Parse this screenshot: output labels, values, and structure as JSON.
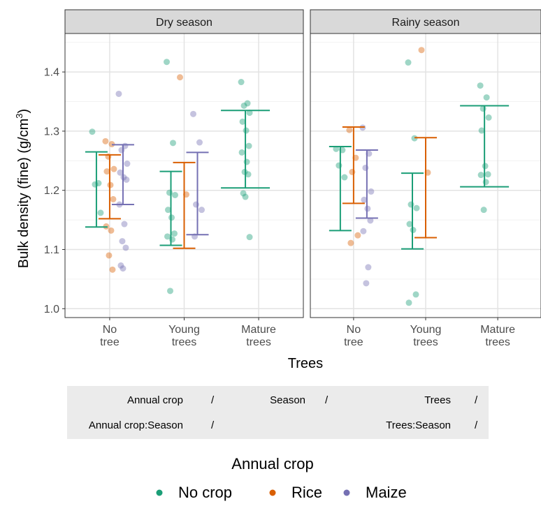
{
  "chart_data": {
    "type": "scatter",
    "ylabel_main": "Bulk density (fine) (g/cm",
    "ylabel_sup": "3",
    "ylabel_tail": ")",
    "xlabel": "Trees",
    "ylim": [
      0.985,
      1.465
    ],
    "yticks": [
      "1.0",
      "1.1",
      "1.2",
      "1.3",
      "1.4"
    ],
    "categories": [
      [
        "No",
        "tree"
      ],
      [
        "Young",
        "trees"
      ],
      [
        "Mature",
        "trees"
      ]
    ],
    "colors": {
      "No crop": "#1b9e77",
      "Rice": "#d95f02",
      "Maize": "#7570b3"
    },
    "legend": {
      "title": "Annual crop",
      "entries": [
        "No crop",
        "Rice",
        "Maize"
      ],
      "position": "bottom"
    },
    "panels": [
      {
        "title": "Dry season",
        "groups": [
          {
            "tree": 0,
            "crop": "No crop",
            "lower": 1.138,
            "upper": 1.265,
            "points": [
              1.299,
              1.212,
              1.21,
              1.162
            ]
          },
          {
            "tree": 0,
            "crop": "Rice",
            "lower": 1.152,
            "upper": 1.26,
            "points": [
              1.283,
              1.278,
              1.257,
              1.236,
              1.232,
              1.209,
              1.185,
              1.139,
              1.132,
              1.09,
              1.066
            ]
          },
          {
            "tree": 0,
            "crop": "Maize",
            "lower": 1.176,
            "upper": 1.277,
            "points": [
              1.363,
              1.275,
              1.268,
              1.245,
              1.23,
              1.222,
              1.218,
              1.176,
              1.143,
              1.114,
              1.103,
              1.073,
              1.068
            ]
          },
          {
            "tree": 1,
            "crop": "No crop",
            "lower": 1.107,
            "upper": 1.232,
            "points": [
              1.417,
              1.28,
              1.196,
              1.192,
              1.167,
              1.154,
              1.127,
              1.122,
              1.117,
              1.03
            ]
          },
          {
            "tree": 1,
            "crop": "Rice",
            "lower": 1.102,
            "upper": 1.247,
            "points": [
              1.391,
              1.193
            ]
          },
          {
            "tree": 1,
            "crop": "Maize",
            "lower": 1.125,
            "upper": 1.264,
            "points": [
              1.329,
              1.281,
              1.176,
              1.167,
              1.122
            ]
          },
          {
            "tree": 2,
            "crop": "No crop",
            "lower": 1.204,
            "upper": 1.335,
            "points": [
              1.383,
              1.347,
              1.343,
              1.331,
              1.316,
              1.301,
              1.275,
              1.264,
              1.248,
              1.231,
              1.227,
              1.195,
              1.189,
              1.121
            ]
          }
        ]
      },
      {
        "title": "Rainy season",
        "groups": [
          {
            "tree": 0,
            "crop": "No crop",
            "lower": 1.132,
            "upper": 1.274,
            "points": [
              1.27,
              1.268,
              1.242,
              1.222
            ]
          },
          {
            "tree": 0,
            "crop": "Rice",
            "lower": 1.178,
            "upper": 1.307,
            "points": [
              1.302,
              1.255,
              1.231,
              1.124,
              1.111
            ]
          },
          {
            "tree": 0,
            "crop": "Maize",
            "lower": 1.153,
            "upper": 1.268,
            "points": [
              1.306,
              1.262,
              1.238,
              1.198,
              1.184,
              1.169,
              1.149,
              1.131,
              1.07,
              1.043
            ]
          },
          {
            "tree": 1,
            "crop": "No crop",
            "lower": 1.101,
            "upper": 1.229,
            "points": [
              1.416,
              1.288,
              1.176,
              1.17,
              1.143,
              1.133,
              1.024,
              1.01
            ]
          },
          {
            "tree": 1,
            "crop": "Rice",
            "lower": 1.12,
            "upper": 1.289,
            "points": [
              1.437,
              1.23
            ]
          },
          {
            "tree": 2,
            "crop": "No crop",
            "lower": 1.206,
            "upper": 1.343,
            "points": [
              1.377,
              1.357,
              1.338,
              1.323,
              1.301,
              1.241,
              1.227,
              1.226,
              1.214,
              1.167
            ]
          }
        ]
      }
    ]
  },
  "stats_table": {
    "row1": [
      "Annual crop",
      "/",
      "Season",
      "/",
      "Trees",
      "/"
    ],
    "row2": [
      "Annual crop:Season",
      "/",
      "Trees:Season",
      "/"
    ]
  }
}
